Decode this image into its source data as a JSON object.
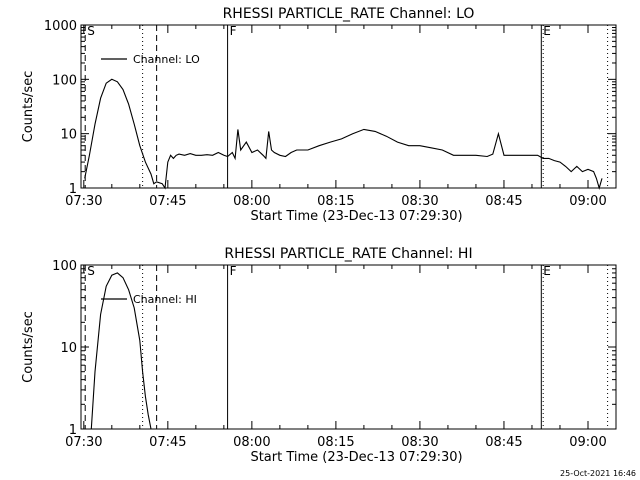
{
  "chart_data": [
    {
      "type": "line",
      "title": "RHESSI PARTICLE_RATE Channel: LO",
      "xlabel": "Start Time (23-Dec-13 07:29:30)",
      "ylabel": "Counts/sec",
      "yscale": "log",
      "ylim": [
        1,
        1000
      ],
      "xlim": [
        "07:29:30",
        "09:05:00"
      ],
      "yticks": [
        "1",
        "10",
        "100",
        "1000"
      ],
      "xticks": [
        "07:30",
        "07:45",
        "08:00",
        "08:15",
        "08:30",
        "08:45",
        "09:00"
      ],
      "legend": "Channel: LO",
      "legend_position": "top-left",
      "markers": [
        {
          "time": "07:30:15",
          "label": "S",
          "style": "dashed"
        },
        {
          "time": "07:40:30",
          "label": "",
          "style": "dotted"
        },
        {
          "time": "07:43:00",
          "label": "",
          "style": "dashed"
        },
        {
          "time": "07:55:40",
          "label": "F",
          "style": "solid"
        },
        {
          "time": "08:51:40",
          "label": "E",
          "style": "solid"
        },
        {
          "time": "08:52:00",
          "label": "",
          "style": "dotted"
        },
        {
          "time": "09:03:30",
          "label": "",
          "style": "dotted"
        }
      ],
      "series": [
        {
          "name": "Channel: LO",
          "x": [
            "07:30:10",
            "07:31:00",
            "07:32:00",
            "07:33:00",
            "07:34:00",
            "07:35:00",
            "07:36:00",
            "07:37:00",
            "07:38:00",
            "07:39:00",
            "07:40:00",
            "07:41:00",
            "07:42:00",
            "07:42:30",
            "07:43:00",
            "07:44:00",
            "07:44:30",
            "07:45:00",
            "07:45:30",
            "07:46:00",
            "07:46:30",
            "07:47:00",
            "07:48:00",
            "07:49:00",
            "07:50:00",
            "07:51:00",
            "07:52:00",
            "07:53:00",
            "07:54:00",
            "07:55:00",
            "07:55:40",
            "07:56:30",
            "07:57:00",
            "07:57:30",
            "07:58:00",
            "07:59:00",
            "08:00:00",
            "08:01:00",
            "08:02:00",
            "08:02:30",
            "08:03:00",
            "08:03:30",
            "08:04:00",
            "08:05:00",
            "08:06:00",
            "08:07:00",
            "08:08:00",
            "08:10:00",
            "08:12:00",
            "08:14:00",
            "08:16:00",
            "08:18:00",
            "08:20:00",
            "08:22:00",
            "08:24:00",
            "08:26:00",
            "08:28:00",
            "08:30:00",
            "08:32:00",
            "08:34:00",
            "08:36:00",
            "08:38:00",
            "08:40:00",
            "08:42:00",
            "08:43:00",
            "08:44:00",
            "08:45:00",
            "08:47:00",
            "08:49:00",
            "08:51:00",
            "08:52:00",
            "08:53:00",
            "08:54:00",
            "08:55:00",
            "08:56:00",
            "08:57:00",
            "08:58:00",
            "08:59:00",
            "09:00:00",
            "09:01:00",
            "09:01:30",
            "09:02:00",
            "09:02:30"
          ],
          "y": [
            1.5,
            4,
            15,
            45,
            85,
            100,
            90,
            65,
            35,
            15,
            6,
            3,
            1.8,
            1.2,
            1.3,
            1.2,
            1,
            3,
            4,
            3.5,
            4,
            4.2,
            4,
            4.3,
            4,
            4,
            4.1,
            4,
            4.5,
            4,
            3.8,
            4.5,
            3.5,
            12,
            5,
            7,
            4.5,
            5,
            4,
            3.5,
            11,
            5,
            4.5,
            4,
            3.8,
            4.5,
            5,
            5,
            6,
            7,
            8,
            10,
            12,
            11,
            9,
            7,
            6,
            6,
            5.5,
            5,
            4,
            4,
            4,
            3.8,
            4.2,
            10,
            4,
            4,
            4,
            4,
            3.5,
            3.5,
            3.2,
            3,
            2.5,
            2,
            2.5,
            2,
            2.2,
            2,
            1.5,
            1,
            1.5
          ]
        }
      ]
    },
    {
      "type": "line",
      "title": "RHESSI PARTICLE_RATE Channel: HI",
      "xlabel": "Start Time (23-Dec-13 07:29:30)",
      "ylabel": "Counts/sec",
      "yscale": "log",
      "ylim": [
        1,
        100
      ],
      "xlim": [
        "07:29:30",
        "09:05:00"
      ],
      "yticks": [
        "1",
        "10",
        "100"
      ],
      "xticks": [
        "07:30",
        "07:45",
        "08:00",
        "08:15",
        "08:30",
        "08:45",
        "09:00"
      ],
      "legend": "Channel: HI",
      "legend_position": "top-left",
      "markers": [
        {
          "time": "07:30:15",
          "label": "S",
          "style": "dashed"
        },
        {
          "time": "07:40:30",
          "label": "",
          "style": "dotted"
        },
        {
          "time": "07:43:00",
          "label": "",
          "style": "dashed"
        },
        {
          "time": "07:55:40",
          "label": "F",
          "style": "solid"
        },
        {
          "time": "08:51:40",
          "label": "E",
          "style": "solid"
        },
        {
          "time": "08:52:00",
          "label": "",
          "style": "dotted"
        },
        {
          "time": "09:03:30",
          "label": "",
          "style": "dotted"
        }
      ],
      "series": [
        {
          "name": "Channel: HI",
          "x": [
            "07:31:20",
            "07:32:00",
            "07:33:00",
            "07:34:00",
            "07:35:00",
            "07:36:00",
            "07:37:00",
            "07:38:00",
            "07:39:00",
            "07:40:00",
            "07:40:30",
            "07:41:00",
            "07:41:30",
            "07:42:00"
          ],
          "y": [
            1,
            5,
            25,
            55,
            75,
            80,
            70,
            50,
            30,
            12,
            5,
            2.5,
            1.5,
            1
          ]
        }
      ]
    }
  ],
  "footer": {
    "timestamp": "25-Oct-2021 16:46"
  }
}
